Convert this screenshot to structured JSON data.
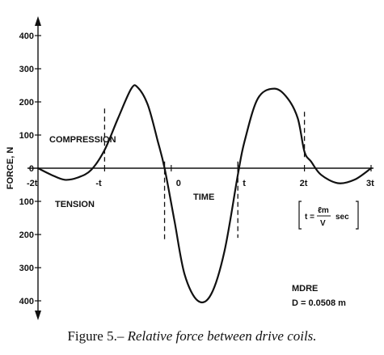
{
  "chart_data": {
    "type": "line",
    "ylabel": "FORCE, N",
    "xlabel": "TIME",
    "x_unit": "t",
    "x_ticks": [
      {
        "value": -2,
        "label": "-2t"
      },
      {
        "value": -1,
        "label": "-t"
      },
      {
        "value": 0,
        "label": "0"
      },
      {
        "value": 1,
        "label": "t"
      },
      {
        "value": 2,
        "label": "2t"
      },
      {
        "value": 3,
        "label": "3t"
      }
    ],
    "y_ticks": [
      {
        "value": 400,
        "label": "400"
      },
      {
        "value": 300,
        "label": "300"
      },
      {
        "value": 200,
        "label": "200"
      },
      {
        "value": 100,
        "label": "100"
      },
      {
        "value": 0,
        "label": "0"
      },
      {
        "value": -100,
        "label": "100"
      },
      {
        "value": -200,
        "label": "200"
      },
      {
        "value": -300,
        "label": "300"
      },
      {
        "value": -400,
        "label": "400"
      }
    ],
    "xlim": [
      -2,
      3
    ],
    "ylim": [
      -400,
      400
    ],
    "grid": false,
    "series": [
      {
        "points": [
          [
            -2.0,
            0
          ],
          [
            -1.8,
            -20
          ],
          [
            -1.6,
            -35
          ],
          [
            -1.4,
            -28
          ],
          [
            -1.2,
            -5
          ],
          [
            -1.0,
            55
          ],
          [
            -0.8,
            150
          ],
          [
            -0.6,
            240
          ],
          [
            -0.5,
            243
          ],
          [
            -0.35,
            190
          ],
          [
            -0.2,
            80
          ],
          [
            -0.1,
            0
          ],
          [
            0.05,
            -160
          ],
          [
            0.2,
            -320
          ],
          [
            0.4,
            -400
          ],
          [
            0.6,
            -380
          ],
          [
            0.8,
            -250
          ],
          [
            1.0,
            -20
          ],
          [
            1.1,
            80
          ],
          [
            1.3,
            210
          ],
          [
            1.55,
            240
          ],
          [
            1.75,
            210
          ],
          [
            1.9,
            150
          ],
          [
            2.0,
            50
          ],
          [
            2.1,
            20
          ],
          [
            2.25,
            -20
          ],
          [
            2.5,
            -45
          ],
          [
            2.75,
            -35
          ],
          [
            3.0,
            0
          ]
        ]
      }
    ],
    "dashed_markers": [
      {
        "x": -1,
        "y_from": 180,
        "y_to": 20
      },
      {
        "x": -0.1,
        "y_from": 20,
        "y_to": -220
      },
      {
        "x": 1,
        "y_from": 20,
        "y_to": -210
      },
      {
        "x": 2,
        "y_from": 170,
        "y_to": 30
      }
    ],
    "annotations": {
      "compression": "COMPRESSION",
      "tension": "TENSION",
      "formula_prefix": "t =",
      "formula_numerator": "ℓm",
      "formula_denominator": "V",
      "formula_unit": "sec",
      "mdre": "MDRE",
      "diameter": "D = 0.0508 m"
    }
  },
  "caption": {
    "label": "Figure 5.–",
    "text": "Relative force between drive coils."
  }
}
